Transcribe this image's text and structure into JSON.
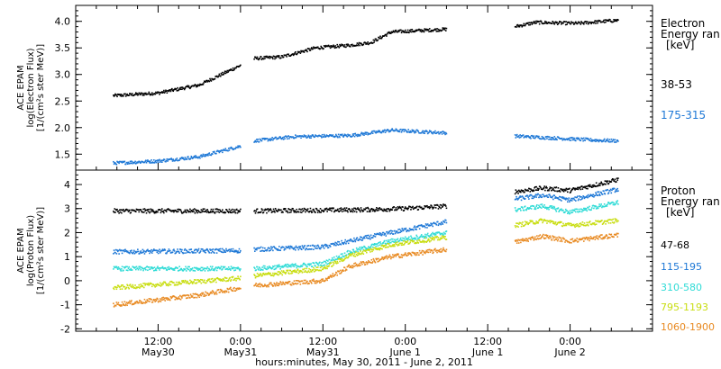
{
  "chart_data": [
    {
      "type": "scatter",
      "panel": "electron",
      "ylabel_lines": [
        "ACE EPAM",
        "log(Electron Flux)",
        "[1/(cm²s ster MeV)]"
      ],
      "ylim": [
        1.2,
        4.3
      ],
      "yticks": [
        1.5,
        2.0,
        2.5,
        3.0,
        3.5,
        4.0
      ],
      "ytick_labels": [
        "1.5",
        "2.0",
        "2.5",
        "3.0",
        "3.5",
        "4.0"
      ],
      "legend_title": [
        "Electron",
        "Energy ran",
        "[keV]"
      ],
      "series": [
        {
          "name": "38-53",
          "color": "#000000",
          "segments": [
            [
              [
                5.5,
                2.6
              ],
              [
                12,
                2.65
              ],
              [
                18,
                2.8
              ],
              [
                24,
                3.17
              ]
            ],
            [
              [
                26,
                3.3
              ],
              [
                30,
                3.33
              ],
              [
                35,
                3.5
              ],
              [
                40,
                3.55
              ],
              [
                43,
                3.6
              ],
              [
                46,
                3.8
              ],
              [
                54,
                3.85
              ]
            ],
            [
              [
                64,
                3.9
              ],
              [
                67,
                3.98
              ],
              [
                73,
                3.96
              ],
              [
                79,
                4.02
              ]
            ]
          ]
        },
        {
          "name": "175-315",
          "color": "#1e78d6",
          "segments": [
            [
              [
                5.5,
                1.33
              ],
              [
                12,
                1.37
              ],
              [
                18,
                1.45
              ],
              [
                24,
                1.65
              ]
            ],
            [
              [
                26,
                1.75
              ],
              [
                32,
                1.83
              ],
              [
                40,
                1.85
              ],
              [
                46,
                1.95
              ],
              [
                54,
                1.9
              ]
            ],
            [
              [
                64,
                1.84
              ],
              [
                70,
                1.8
              ],
              [
                76,
                1.76
              ],
              [
                79,
                1.75
              ]
            ]
          ]
        }
      ]
    },
    {
      "type": "scatter",
      "panel": "proton",
      "ylabel_lines": [
        "ACE EPAM",
        "log(Proton Flux)",
        "[1/(cm²s ster MeV)]"
      ],
      "ylim": [
        -2.1,
        4.6
      ],
      "yticks": [
        -2,
        -1,
        0,
        1,
        2,
        3,
        4
      ],
      "ytick_labels": [
        "-2",
        "-1",
        "0",
        "1",
        "2",
        "3",
        "4"
      ],
      "legend_title": [
        "Proton",
        "Energy ran",
        "[keV]"
      ],
      "series": [
        {
          "name": "47-68",
          "color": "#000000",
          "segments": [
            [
              [
                5.5,
                2.9
              ],
              [
                24,
                2.9
              ]
            ],
            [
              [
                26,
                2.9
              ],
              [
                42,
                2.95
              ],
              [
                48,
                3.0
              ],
              [
                54,
                3.1
              ]
            ],
            [
              [
                64,
                3.7
              ],
              [
                68,
                3.85
              ],
              [
                72,
                3.75
              ],
              [
                79,
                4.2
              ]
            ]
          ]
        },
        {
          "name": "115-195",
          "color": "#1e78d6",
          "segments": [
            [
              [
                5.5,
                1.2
              ],
              [
                24,
                1.25
              ]
            ],
            [
              [
                26,
                1.3
              ],
              [
                36,
                1.4
              ],
              [
                40,
                1.65
              ],
              [
                46,
                2.0
              ],
              [
                54,
                2.45
              ]
            ],
            [
              [
                64,
                3.4
              ],
              [
                68,
                3.55
              ],
              [
                72,
                3.35
              ],
              [
                79,
                3.8
              ]
            ]
          ]
        },
        {
          "name": "310-580",
          "color": "#2fdbd6",
          "segments": [
            [
              [
                5.5,
                0.5
              ],
              [
                24,
                0.5
              ]
            ],
            [
              [
                26,
                0.5
              ],
              [
                36,
                0.7
              ],
              [
                40,
                1.2
              ],
              [
                46,
                1.65
              ],
              [
                54,
                2.0
              ]
            ],
            [
              [
                64,
                2.95
              ],
              [
                68,
                3.1
              ],
              [
                72,
                2.85
              ],
              [
                79,
                3.25
              ]
            ]
          ]
        },
        {
          "name": "795-1193",
          "color": "#c8dd10",
          "segments": [
            [
              [
                5.5,
                -0.3
              ],
              [
                24,
                0.1
              ]
            ],
            [
              [
                26,
                0.2
              ],
              [
                36,
                0.5
              ],
              [
                40,
                1.05
              ],
              [
                46,
                1.5
              ],
              [
                54,
                1.8
              ]
            ],
            [
              [
                64,
                2.3
              ],
              [
                68,
                2.5
              ],
              [
                72,
                2.3
              ],
              [
                79,
                2.5
              ]
            ]
          ]
        },
        {
          "name": "1060-1900",
          "color": "#e88a22",
          "segments": [
            [
              [
                5.5,
                -1.0
              ],
              [
                12,
                -0.8
              ],
              [
                18,
                -0.6
              ],
              [
                24,
                -0.3
              ]
            ],
            [
              [
                26,
                -0.2
              ],
              [
                36,
                0.0
              ],
              [
                40,
                0.6
              ],
              [
                46,
                1.0
              ],
              [
                54,
                1.3
              ]
            ],
            [
              [
                64,
                1.6
              ],
              [
                68,
                1.85
              ],
              [
                72,
                1.65
              ],
              [
                79,
                1.9
              ]
            ]
          ]
        }
      ]
    }
  ],
  "x_axis": {
    "xlim": [
      0,
      84
    ],
    "ticks": [
      {
        "hours": 12,
        "top": "12:00",
        "bottom": "May30"
      },
      {
        "hours": 24,
        "top": "0:00",
        "bottom": "May31"
      },
      {
        "hours": 36,
        "top": "12:00",
        "bottom": "May31"
      },
      {
        "hours": 48,
        "top": "0:00",
        "bottom": "June 1"
      },
      {
        "hours": 60,
        "top": "12:00",
        "bottom": "June 1"
      },
      {
        "hours": 72,
        "top": "0:00",
        "bottom": "June 2"
      }
    ],
    "xlabel": "hours:minutes, May 30, 2011 - June  2, 2011"
  }
}
